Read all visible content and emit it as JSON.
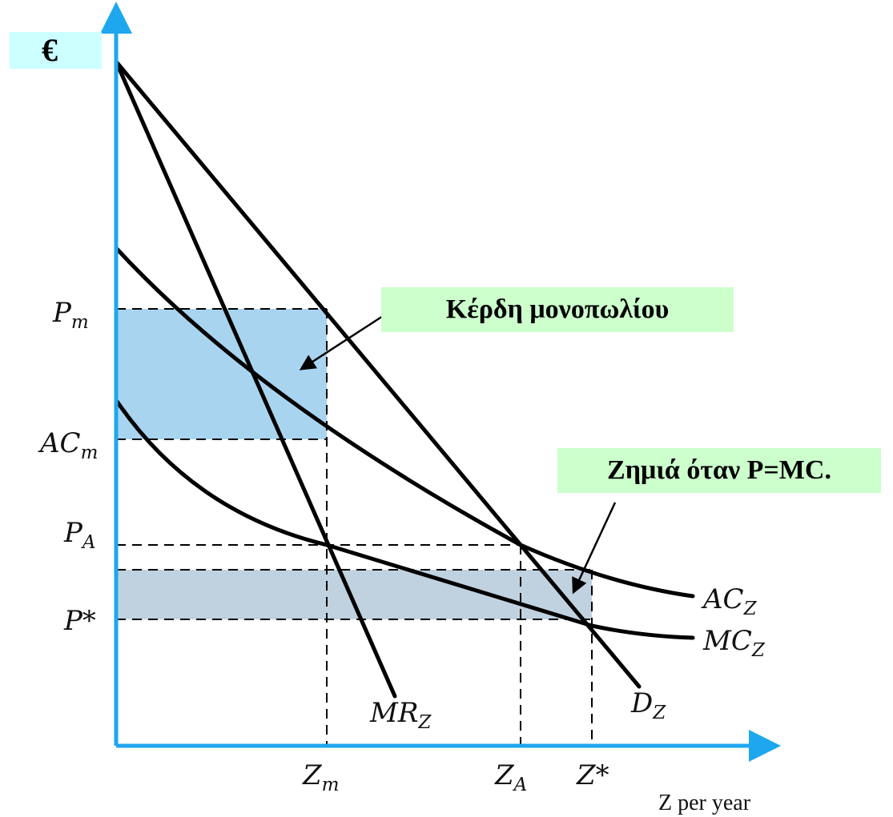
{
  "currency_label": "€",
  "callouts": {
    "monopoly_profit": "Κέρδη μονοπωλίου",
    "loss_when_p_equals_mc": "Ζημιά όταν P=MC."
  },
  "y_labels": {
    "pm": {
      "main": "P",
      "sub": "m"
    },
    "acm": {
      "main": "AC",
      "sub": "m"
    },
    "pa": {
      "main": "P",
      "sub": "A"
    },
    "pstar": {
      "main": "P*",
      "sub": ""
    }
  },
  "x_labels": {
    "zm": {
      "main": "Z",
      "sub": "m"
    },
    "za": {
      "main": "Z",
      "sub": "A"
    },
    "zstar": {
      "main": "Z*",
      "sub": ""
    },
    "axis_title": "Z per year"
  },
  "curve_labels": {
    "mr": {
      "main": "MR",
      "sub": "Z"
    },
    "d": {
      "main": "D",
      "sub": "Z"
    },
    "ac": {
      "main": "AC",
      "sub": "Z"
    },
    "mc": {
      "main": "MC",
      "sub": "Z"
    }
  },
  "colors": {
    "axis": "#1ea7ef",
    "profit_fill": "#a8d4f0",
    "loss_fill": "#c0d2e0",
    "callout_bg": "#ccffcc",
    "currency_bg": "#ccffff"
  }
}
